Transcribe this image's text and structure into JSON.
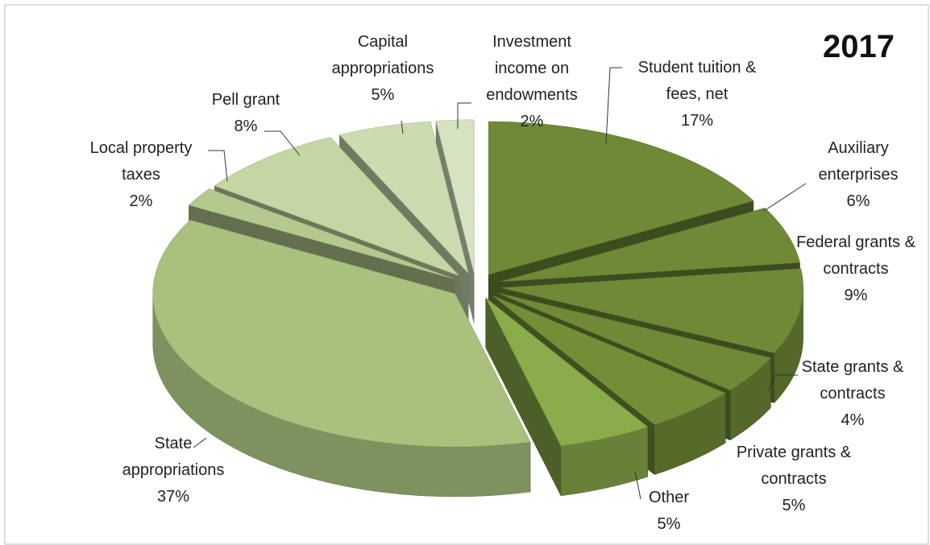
{
  "chart_data": {
    "type": "pie3d",
    "title": "2017",
    "categories": [
      "Student tuition & fees, net",
      "Auxiliary enterprises",
      "Federal grants & contracts",
      "State grants & contracts",
      "Private grants & contracts",
      "Other",
      "State appropriations",
      "Local property taxes",
      "Pell grant",
      "Capital appropriations",
      "Investment income on endowments"
    ],
    "values": [
      17,
      6,
      9,
      4,
      5,
      5,
      37,
      2,
      8,
      5,
      2
    ],
    "value_labels": [
      "17%",
      "6%",
      "9%",
      "4%",
      "5%",
      "5%",
      "37%",
      "2%",
      "8%",
      "5%",
      "2%"
    ],
    "colors": [
      "#6f8a36",
      "#6f8a36",
      "#6f8a36",
      "#6f8a36",
      "#728f38",
      "#8aac4a",
      "#a8c27e",
      "#b4c98e",
      "#c4d6a2",
      "#ccdcb0",
      "#d6e3c2"
    ]
  }
}
